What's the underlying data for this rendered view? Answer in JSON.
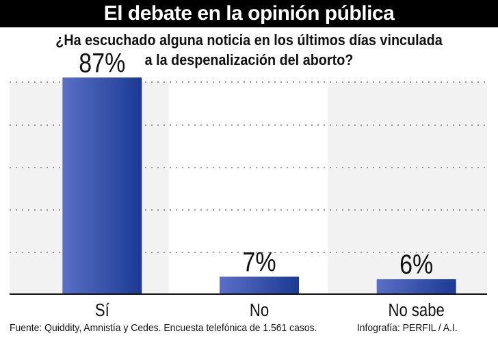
{
  "header": {
    "title": "El debate en la opinión pública"
  },
  "question": {
    "line1": "¿Ha escuchado alguna noticia en los últimos días vinculada",
    "line2": "a la despenalización del aborto?"
  },
  "chart_data": {
    "type": "bar",
    "categories": [
      "Sí",
      "No",
      "No sabe"
    ],
    "values": [
      87,
      7,
      6
    ],
    "value_labels": [
      "87%",
      "7%",
      "6%"
    ],
    "ylim": [
      0,
      100
    ],
    "grid": true,
    "bar_color_light": "#5a6fc6",
    "bar_color_dark": "#1b3a93"
  },
  "footer": {
    "source": "Fuente: Quiddity, Amnistía y Cedes. Encuesta telefónica de 1.561 casos.",
    "credit": "Infografía: PERFIL / A.I."
  }
}
